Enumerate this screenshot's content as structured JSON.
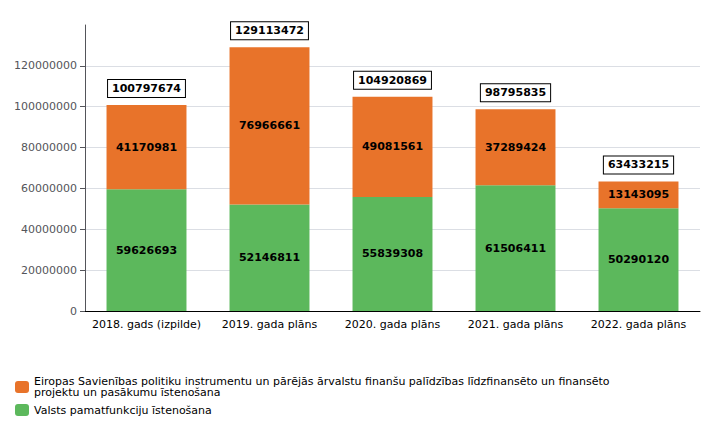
{
  "chart_data": {
    "type": "bar",
    "stacked": true,
    "categories": [
      "2018. gads (izpilde)",
      "2019. gada plāns",
      "2020. gada plāns",
      "2021. gada plāns",
      "2022. gada plāns"
    ],
    "series": [
      {
        "name": "Valsts pamatfunkciju īstenošana",
        "color": "#5cb85c",
        "values": [
          59626693,
          52146811,
          55839308,
          61506411,
          50290120
        ]
      },
      {
        "name": "Eiropas Savienības politiku instrumentu un pārējās ārvalstu finanšu palīdzības līdzfinansēto un finansēto\nprojektu un pasākumu īstenošana",
        "color": "#e8732a",
        "values": [
          41170981,
          76966661,
          49081561,
          37289424,
          13143095
        ]
      }
    ],
    "totals": [
      100797674,
      129113472,
      104920869,
      98795835,
      63433215
    ],
    "ylim": [
      0,
      140000000
    ],
    "yticks": [
      0,
      20000000,
      40000000,
      60000000,
      80000000,
      100000000,
      120000000
    ],
    "grid": true,
    "data_labels": true,
    "legend": "lower left"
  }
}
